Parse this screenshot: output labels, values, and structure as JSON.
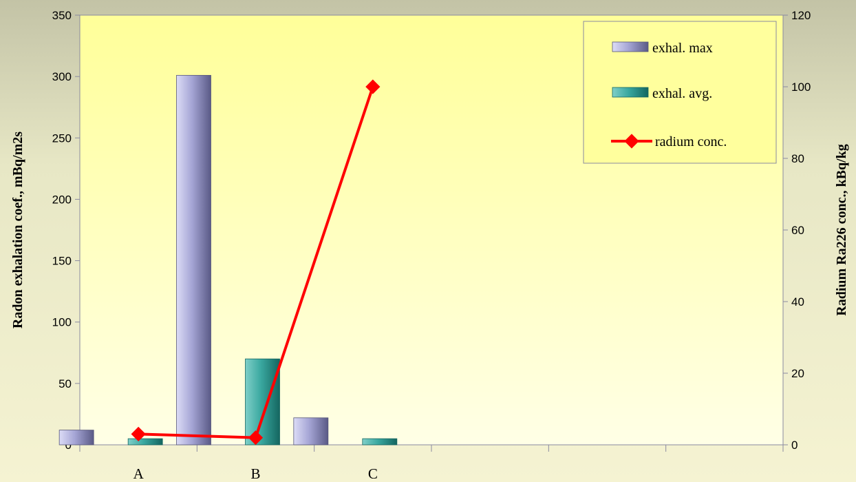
{
  "chart_data": {
    "type": "bar",
    "categories": [
      "A",
      "B",
      "C",
      "",
      "",
      ""
    ],
    "series": [
      {
        "name": "exhal. max",
        "kind": "bar",
        "axis": "left",
        "values": [
          12,
          301,
          22,
          null,
          null,
          null
        ],
        "color": "#b3b3e0"
      },
      {
        "name": "exhal. avg.",
        "kind": "bar",
        "axis": "left",
        "values": [
          5,
          70,
          5,
          null,
          null,
          null
        ],
        "color": "#3aa8a0"
      },
      {
        "name": "radium conc.",
        "kind": "line",
        "axis": "right",
        "values": [
          3,
          2,
          100,
          null,
          null,
          null
        ],
        "color": "#ff0000"
      }
    ],
    "title": "",
    "xlabel": "",
    "ylabel": "Radon exhalation coef., mBq/m2s",
    "y2label": "Radium Ra226 conc., kBq/kg",
    "ylim": [
      0,
      350
    ],
    "y2lim": [
      0,
      120
    ],
    "yticks": [
      0,
      50,
      100,
      150,
      200,
      250,
      300,
      350
    ],
    "y2ticks": [
      0,
      20,
      40,
      60,
      80,
      100,
      120
    ],
    "grid": false,
    "legend": "top-right",
    "plot_background": "#ffff99"
  }
}
